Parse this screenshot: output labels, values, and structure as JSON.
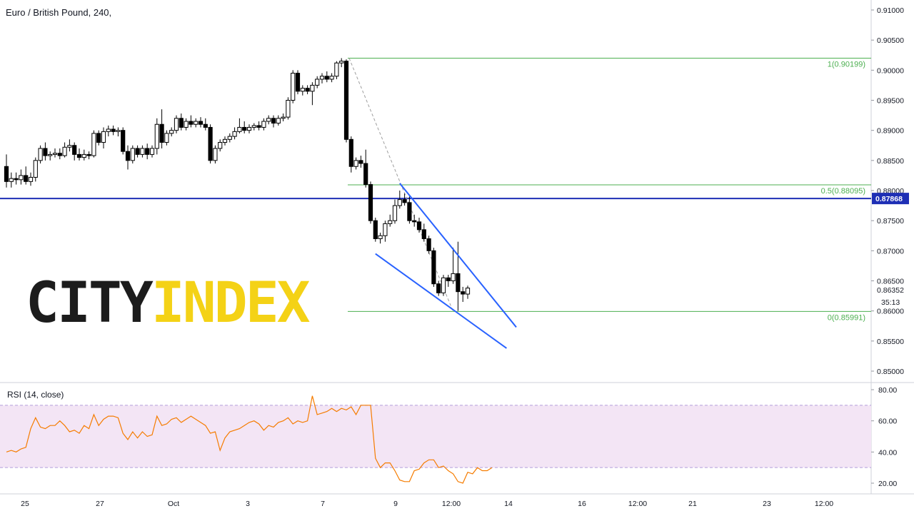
{
  "title": "Euro / British Pound, 240,",
  "logo": {
    "part1": "CITY",
    "part2": "INDEX"
  },
  "colors": {
    "up": "#ffffff",
    "down": "#000000",
    "fib": "#4caf50",
    "channel": "#2962ff",
    "hline": "#1e2fb5",
    "rsi_line": "#f57c00",
    "rsi_band": "#f3e5f5",
    "rsi_bound": "#b39ddb"
  },
  "chart_data": [
    {
      "type": "candlestick",
      "title": "Euro / British Pound, 240,",
      "ylim": [
        0.848,
        0.9115
      ],
      "price_ticks": [
        "0.85000",
        "0.85500",
        "0.86000",
        "0.86500",
        "0.87000",
        "0.87500",
        "0.88000",
        "0.88500",
        "0.89000",
        "0.89500",
        "0.90000",
        "0.90500",
        "0.91000"
      ],
      "x_ticks": [
        "25",
        "27",
        "Oct",
        "3",
        "7",
        "9",
        "12:00",
        "14",
        "16",
        "12:00",
        "21",
        "23",
        "12:00"
      ],
      "current_price": "0.86352",
      "countdown": "35:13",
      "horizontal_line": {
        "value": 0.87868,
        "label": "0.87868"
      },
      "fibonacci": [
        {
          "level": 1,
          "value": 0.90199,
          "label": "1(0.90199)"
        },
        {
          "level": 0.5,
          "value": 0.88095,
          "label": "0.5(0.88095)"
        },
        {
          "level": 0,
          "value": 0.85991,
          "label": "0(0.85991)"
        }
      ],
      "candles": [
        [
          0.884,
          0.8815,
          0.886,
          0.8805
        ],
        [
          0.8815,
          0.882,
          0.883,
          0.8805
        ],
        [
          0.882,
          0.8818,
          0.883,
          0.881
        ],
        [
          0.8818,
          0.8825,
          0.8835,
          0.881
        ],
        [
          0.8825,
          0.8815,
          0.884,
          0.881
        ],
        [
          0.8815,
          0.8822,
          0.883,
          0.8808
        ],
        [
          0.8822,
          0.885,
          0.8855,
          0.8815
        ],
        [
          0.885,
          0.887,
          0.8875,
          0.8845
        ],
        [
          0.887,
          0.8858,
          0.888,
          0.885
        ],
        [
          0.8858,
          0.886,
          0.8865,
          0.885
        ],
        [
          0.886,
          0.8862,
          0.887,
          0.8855
        ],
        [
          0.8862,
          0.8858,
          0.887,
          0.8852
        ],
        [
          0.8858,
          0.8872,
          0.888,
          0.8855
        ],
        [
          0.8872,
          0.8875,
          0.8885,
          0.8865
        ],
        [
          0.8875,
          0.886,
          0.888,
          0.885
        ],
        [
          0.886,
          0.8855,
          0.887,
          0.885
        ],
        [
          0.8855,
          0.886,
          0.8868,
          0.885
        ],
        [
          0.886,
          0.8858,
          0.8865,
          0.8852
        ],
        [
          0.8858,
          0.8895,
          0.89,
          0.8855
        ],
        [
          0.8895,
          0.888,
          0.89,
          0.8875
        ],
        [
          0.888,
          0.8898,
          0.8905,
          0.887
        ],
        [
          0.8898,
          0.8902,
          0.8908,
          0.889
        ],
        [
          0.8902,
          0.8898,
          0.8908,
          0.8892
        ],
        [
          0.8898,
          0.89,
          0.8905,
          0.889
        ],
        [
          0.89,
          0.8865,
          0.8905,
          0.886
        ],
        [
          0.8865,
          0.885,
          0.8875,
          0.8835
        ],
        [
          0.885,
          0.887,
          0.8875,
          0.8845
        ],
        [
          0.887,
          0.886,
          0.8875,
          0.8855
        ],
        [
          0.886,
          0.887,
          0.8875,
          0.8855
        ],
        [
          0.887,
          0.886,
          0.8878,
          0.8852
        ],
        [
          0.886,
          0.887,
          0.8875,
          0.8855
        ],
        [
          0.887,
          0.891,
          0.892,
          0.886
        ],
        [
          0.891,
          0.888,
          0.8935,
          0.887
        ],
        [
          0.888,
          0.8895,
          0.89,
          0.8875
        ],
        [
          0.8895,
          0.89,
          0.8905,
          0.889
        ],
        [
          0.89,
          0.892,
          0.8925,
          0.8895
        ],
        [
          0.892,
          0.8905,
          0.8928,
          0.89
        ],
        [
          0.8905,
          0.8915,
          0.892,
          0.89
        ],
        [
          0.8915,
          0.891,
          0.8925,
          0.8905
        ],
        [
          0.891,
          0.8915,
          0.892,
          0.8905
        ],
        [
          0.8915,
          0.891,
          0.8922,
          0.8905
        ],
        [
          0.891,
          0.8905,
          0.892,
          0.89
        ],
        [
          0.8905,
          0.885,
          0.891,
          0.8845
        ],
        [
          0.885,
          0.887,
          0.8875,
          0.8845
        ],
        [
          0.887,
          0.888,
          0.8885,
          0.8865
        ],
        [
          0.888,
          0.8885,
          0.889,
          0.8875
        ],
        [
          0.8885,
          0.889,
          0.8895,
          0.888
        ],
        [
          0.889,
          0.8898,
          0.8905,
          0.8885
        ],
        [
          0.8898,
          0.8905,
          0.892,
          0.8895
        ],
        [
          0.8905,
          0.89,
          0.8915,
          0.8895
        ],
        [
          0.89,
          0.8905,
          0.891,
          0.8895
        ],
        [
          0.8905,
          0.8908,
          0.8912,
          0.89
        ],
        [
          0.8908,
          0.8905,
          0.8915,
          0.89
        ],
        [
          0.8905,
          0.8915,
          0.892,
          0.89
        ],
        [
          0.8915,
          0.892,
          0.8925,
          0.891
        ],
        [
          0.892,
          0.8912,
          0.8925,
          0.8905
        ],
        [
          0.8912,
          0.892,
          0.8925,
          0.8908
        ],
        [
          0.892,
          0.8922,
          0.8928,
          0.8915
        ],
        [
          0.8922,
          0.895,
          0.8955,
          0.8918
        ],
        [
          0.895,
          0.8995,
          0.9,
          0.8945
        ],
        [
          0.8995,
          0.8965,
          0.9,
          0.896
        ],
        [
          0.8965,
          0.897,
          0.8975,
          0.8958
        ],
        [
          0.897,
          0.8965,
          0.8975,
          0.896
        ],
        [
          0.8965,
          0.8975,
          0.898,
          0.8942
        ],
        [
          0.8975,
          0.8985,
          0.899,
          0.897
        ],
        [
          0.8985,
          0.899,
          0.8995,
          0.8978
        ],
        [
          0.899,
          0.8985,
          0.8998,
          0.898
        ],
        [
          0.8985,
          0.899,
          0.8995,
          0.898
        ],
        [
          0.899,
          0.9012,
          0.9015,
          0.8985
        ],
        [
          0.9012,
          0.9015,
          0.902,
          0.9005
        ],
        [
          0.9015,
          0.8885,
          0.9018,
          0.888
        ],
        [
          0.8885,
          0.884,
          0.889,
          0.883
        ],
        [
          0.884,
          0.885,
          0.8855,
          0.8835
        ],
        [
          0.885,
          0.8845,
          0.8858,
          0.8838
        ],
        [
          0.8845,
          0.881,
          0.8868,
          0.8805
        ],
        [
          0.881,
          0.875,
          0.8815,
          0.8745
        ],
        [
          0.875,
          0.872,
          0.8755,
          0.8715
        ],
        [
          0.872,
          0.8725,
          0.873,
          0.8712
        ],
        [
          0.8725,
          0.8745,
          0.875,
          0.8715
        ],
        [
          0.8745,
          0.875,
          0.876,
          0.874
        ],
        [
          0.875,
          0.8775,
          0.8785,
          0.8745
        ],
        [
          0.8775,
          0.8785,
          0.88,
          0.877
        ],
        [
          0.8785,
          0.878,
          0.8795,
          0.8775
        ],
        [
          0.878,
          0.875,
          0.879,
          0.8745
        ],
        [
          0.875,
          0.8748,
          0.876,
          0.874
        ],
        [
          0.8748,
          0.8735,
          0.8755,
          0.873
        ],
        [
          0.8735,
          0.872,
          0.8745,
          0.8715
        ],
        [
          0.872,
          0.87,
          0.8725,
          0.8695
        ],
        [
          0.87,
          0.8645,
          0.8705,
          0.864
        ],
        [
          0.8645,
          0.863,
          0.865,
          0.8625
        ],
        [
          0.863,
          0.8655,
          0.866,
          0.8625
        ],
        [
          0.8655,
          0.865,
          0.866,
          0.864
        ],
        [
          0.865,
          0.8662,
          0.8705,
          0.8645
        ],
        [
          0.8662,
          0.8632,
          0.8715,
          0.86
        ],
        [
          0.8632,
          0.8628,
          0.864,
          0.8615
        ],
        [
          0.8628,
          0.8638,
          0.8642,
          0.862
        ]
      ],
      "annotations": {
        "fib_start_index": 70,
        "trend_dashed": [
          [
            70,
            0.90199
          ],
          [
            92,
            0.85991
          ]
        ],
        "channel_upper": [
          [
            81,
            0.8812
          ],
          [
            105,
            0.8573
          ]
        ],
        "channel_lower": [
          [
            76,
            0.8695
          ],
          [
            103,
            0.8538
          ]
        ]
      }
    },
    {
      "type": "line",
      "title": "RSI (14, close)",
      "ylim": [
        15,
        82
      ],
      "y_ticks": [
        "20.00",
        "40.00",
        "60.00",
        "80.00"
      ],
      "bands": [
        30,
        70
      ],
      "values": [
        40,
        41,
        40,
        42,
        43,
        55,
        62,
        56,
        55,
        57,
        57,
        60,
        57,
        53,
        54,
        52,
        57,
        55,
        64,
        57,
        61,
        63,
        63,
        62,
        52,
        48,
        53,
        49,
        53,
        50,
        51,
        63,
        57,
        58,
        61,
        62,
        59,
        61,
        63,
        61,
        59,
        57,
        52,
        53,
        41,
        49,
        53,
        54,
        55,
        57,
        59,
        60,
        58,
        54,
        57,
        56,
        59,
        60,
        62,
        58,
        60,
        59,
        60,
        76,
        64,
        65,
        66,
        68,
        66,
        68,
        67,
        69,
        64,
        70,
        70,
        70,
        36,
        30,
        33,
        33,
        28,
        22,
        21,
        21,
        28,
        29,
        33,
        35,
        35,
        30,
        31,
        28,
        26,
        21,
        20,
        27,
        26,
        30,
        28,
        28,
        30
      ]
    }
  ]
}
